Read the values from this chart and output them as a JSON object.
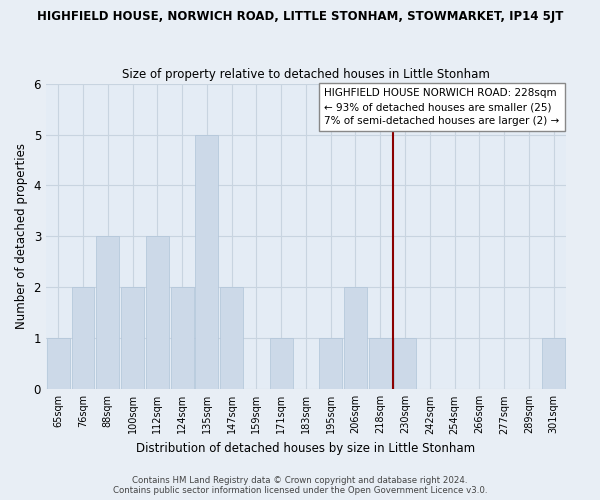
{
  "title": "HIGHFIELD HOUSE, NORWICH ROAD, LITTLE STONHAM, STOWMARKET, IP14 5JT",
  "subtitle": "Size of property relative to detached houses in Little Stonham",
  "xlabel": "Distribution of detached houses by size in Little Stonham",
  "ylabel": "Number of detached properties",
  "bin_labels": [
    "65sqm",
    "76sqm",
    "88sqm",
    "100sqm",
    "112sqm",
    "124sqm",
    "135sqm",
    "147sqm",
    "159sqm",
    "171sqm",
    "183sqm",
    "195sqm",
    "206sqm",
    "218sqm",
    "230sqm",
    "242sqm",
    "254sqm",
    "266sqm",
    "277sqm",
    "289sqm",
    "301sqm"
  ],
  "bar_heights": [
    1,
    2,
    3,
    2,
    3,
    2,
    5,
    2,
    0,
    1,
    0,
    1,
    2,
    1,
    1,
    0,
    0,
    0,
    0,
    0,
    1
  ],
  "bar_color": "#ccd9e8",
  "bar_edge_color": "#b0c4d8",
  "vline_color": "#8b0000",
  "annotation_title": "HIGHFIELD HOUSE NORWICH ROAD: 228sqm",
  "annotation_line1": "← 93% of detached houses are smaller (25)",
  "annotation_line2": "7% of semi-detached houses are larger (2) →",
  "ylim": [
    0,
    6
  ],
  "footer1": "Contains HM Land Registry data © Crown copyright and database right 2024.",
  "footer2": "Contains public sector information licensed under the Open Government Licence v3.0.",
  "bg_color": "#e8eef5",
  "plot_bg_color": "#e4ecf5",
  "grid_color": "#c8d4e0"
}
